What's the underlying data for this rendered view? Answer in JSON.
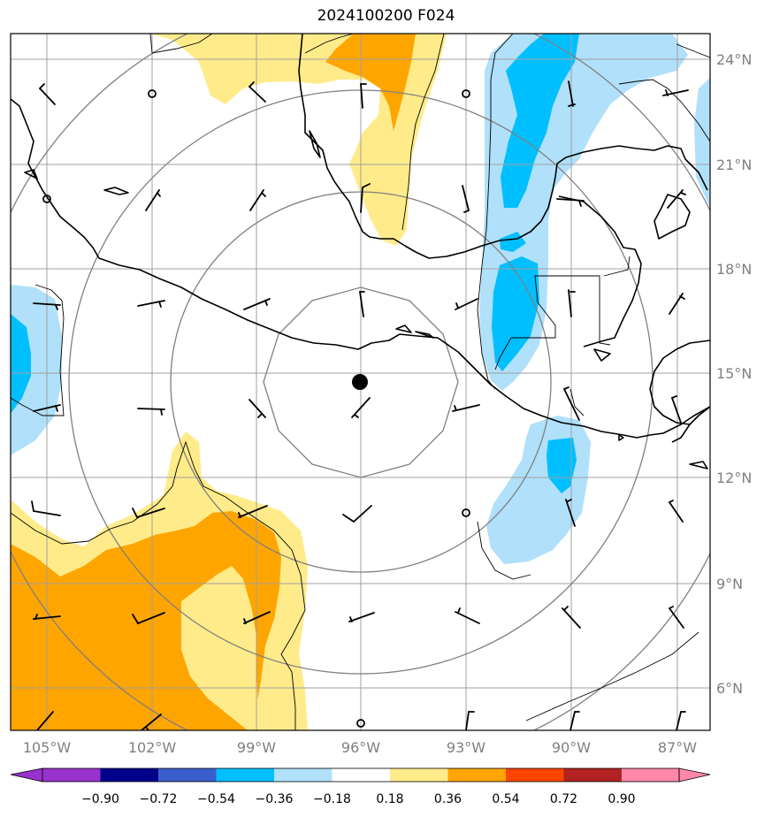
{
  "title": "2024100200 F024",
  "map": {
    "lat_labels": [
      "24°N",
      "21°N",
      "18°N",
      "15°N",
      "12°N",
      "9°N",
      "6°N"
    ],
    "lon_labels": [
      "105°W",
      "102°W",
      "99°W",
      "96°W",
      "93°W",
      "90°W",
      "87°W"
    ],
    "center_marker": {
      "lon": -96,
      "lat": 14.75
    },
    "colors": {
      "light_yellow": "#ffeb8a",
      "orange": "#ffa500",
      "light_blue": "#b0e0fa",
      "cyan": "#00bfff",
      "gridline": "#a0a0a0",
      "range_ring": "#808080",
      "coast": "#000000"
    }
  },
  "colorbar": {
    "ticks": [
      "−0.90",
      "−0.72",
      "−0.54",
      "−0.36",
      "−0.18",
      "0.18",
      "0.36",
      "0.54",
      "0.72",
      "0.90"
    ],
    "colors": [
      "#9932cc",
      "#00008b",
      "#3a5fcd",
      "#00bfff",
      "#b0e0fa",
      "#ffffff",
      "#ffeb8a",
      "#ffa500",
      "#ff4500",
      "#b22222",
      "#ff88aa"
    ]
  }
}
